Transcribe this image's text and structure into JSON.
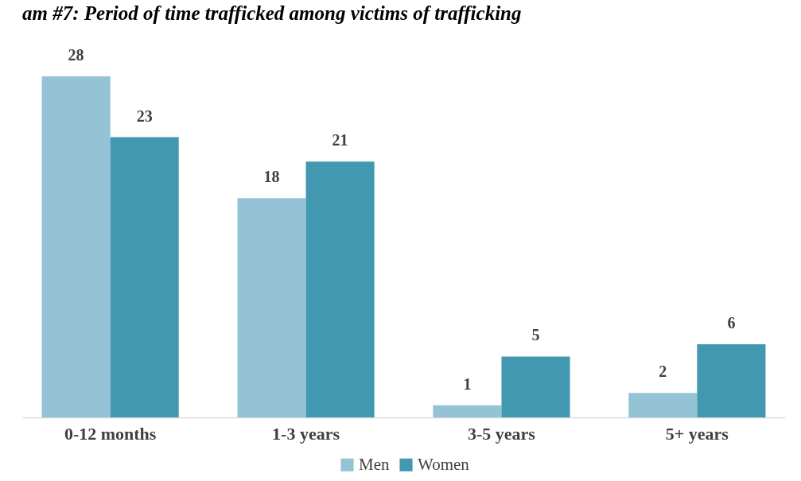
{
  "chart_data": {
    "type": "bar",
    "title": "am #7: Period of time trafficked among victims of trafficking",
    "categories": [
      "0-12 months",
      "1-3 years",
      "3-5 years",
      "5+ years"
    ],
    "series": [
      {
        "name": "Men",
        "color": "#93c3d5",
        "values": [
          28,
          18,
          1,
          2
        ]
      },
      {
        "name": "Women",
        "color": "#4298b0",
        "values": [
          23,
          21,
          5,
          6
        ]
      }
    ],
    "data_labels": true,
    "legend": "bottom"
  }
}
